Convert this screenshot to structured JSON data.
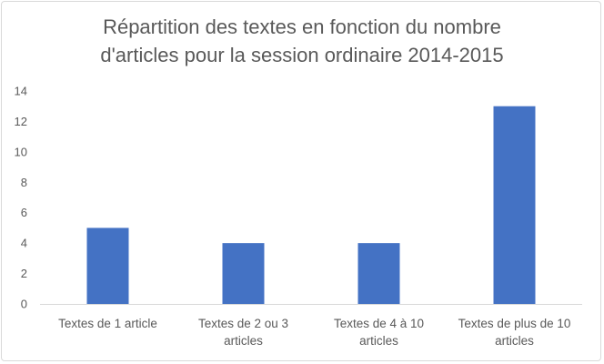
{
  "chart_data": {
    "type": "bar",
    "title": {
      "line1": "Répartition des textes en fonction du nombre",
      "line2": "d'articles pour la session ordinaire 2014-2015"
    },
    "categories": [
      [
        "Textes de 1 article"
      ],
      [
        "Textes de 2 ou 3",
        "articles"
      ],
      [
        "Textes de 4 à 10",
        "articles"
      ],
      [
        "Textes de plus de 10",
        "articles"
      ]
    ],
    "values": [
      5,
      4,
      4,
      13
    ],
    "ylim": [
      0,
      14
    ],
    "yticks": [
      0,
      2,
      4,
      6,
      8,
      10,
      12,
      14
    ],
    "grid": false,
    "legend": "none",
    "bar_color": "#4472c4",
    "axis_color": "#d9d9d9",
    "text_color": "#595959"
  }
}
